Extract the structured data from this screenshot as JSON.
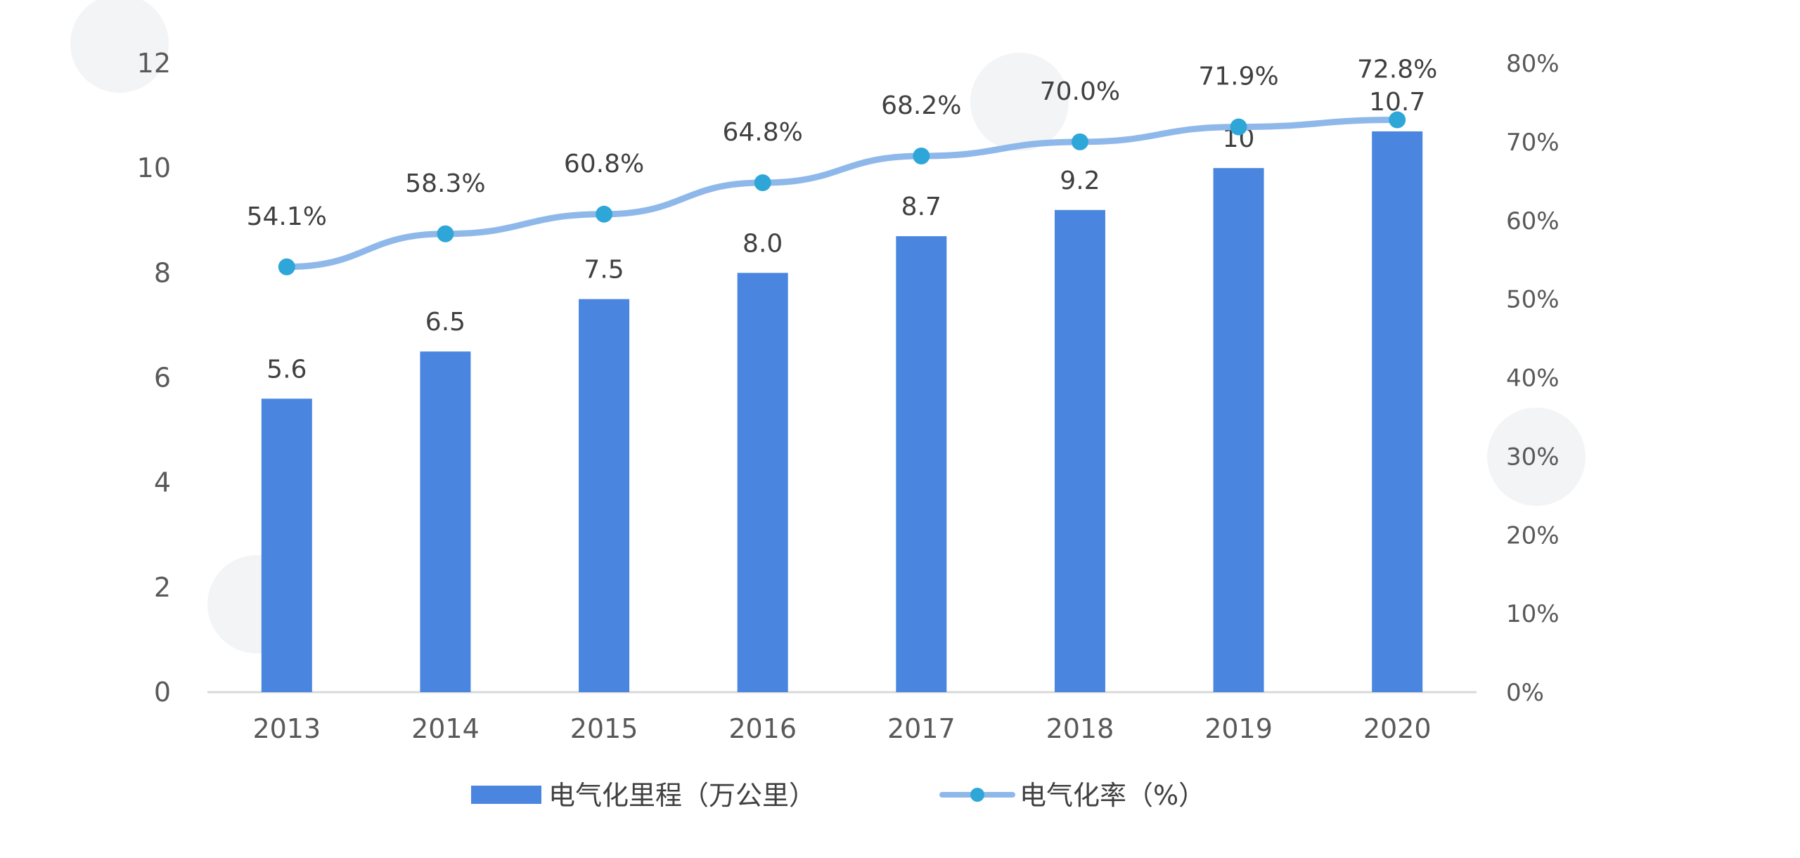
{
  "chart_data": {
    "type": "bar",
    "categories": [
      "2013",
      "2014",
      "2015",
      "2016",
      "2017",
      "2018",
      "2019",
      "2020"
    ],
    "series": [
      {
        "name": "电气化里程（万公里）",
        "type": "bar",
        "axis": "left",
        "values": [
          5.6,
          6.5,
          7.5,
          8.0,
          8.7,
          9.2,
          10,
          10.7
        ],
        "labels": [
          "5.6",
          "6.5",
          "7.5",
          "8.0",
          "8.7",
          "9.2",
          "10",
          "10.7"
        ],
        "color": "#4a86e0"
      },
      {
        "name": "电气化率（%）",
        "type": "line",
        "axis": "right",
        "values": [
          54.1,
          58.3,
          60.8,
          64.8,
          68.2,
          70.0,
          71.9,
          72.8
        ],
        "labels": [
          "54.1%",
          "58.3%",
          "60.8%",
          "64.8%",
          "68.2%",
          "70.0%",
          "71.9%",
          "72.8%"
        ],
        "color": "#8fb8ea",
        "marker_color": "#2ea7d8"
      }
    ],
    "y_left": {
      "ylim": [
        0,
        12
      ],
      "ticks": [
        "0",
        "2",
        "4",
        "6",
        "8",
        "10",
        "12"
      ]
    },
    "y_right": {
      "ylim": [
        0,
        80
      ],
      "ticks": [
        "0%",
        "10%",
        "20%",
        "30%",
        "40%",
        "50%",
        "60%",
        "70%",
        "80%"
      ]
    },
    "grid": false,
    "legend_position": "bottom"
  }
}
